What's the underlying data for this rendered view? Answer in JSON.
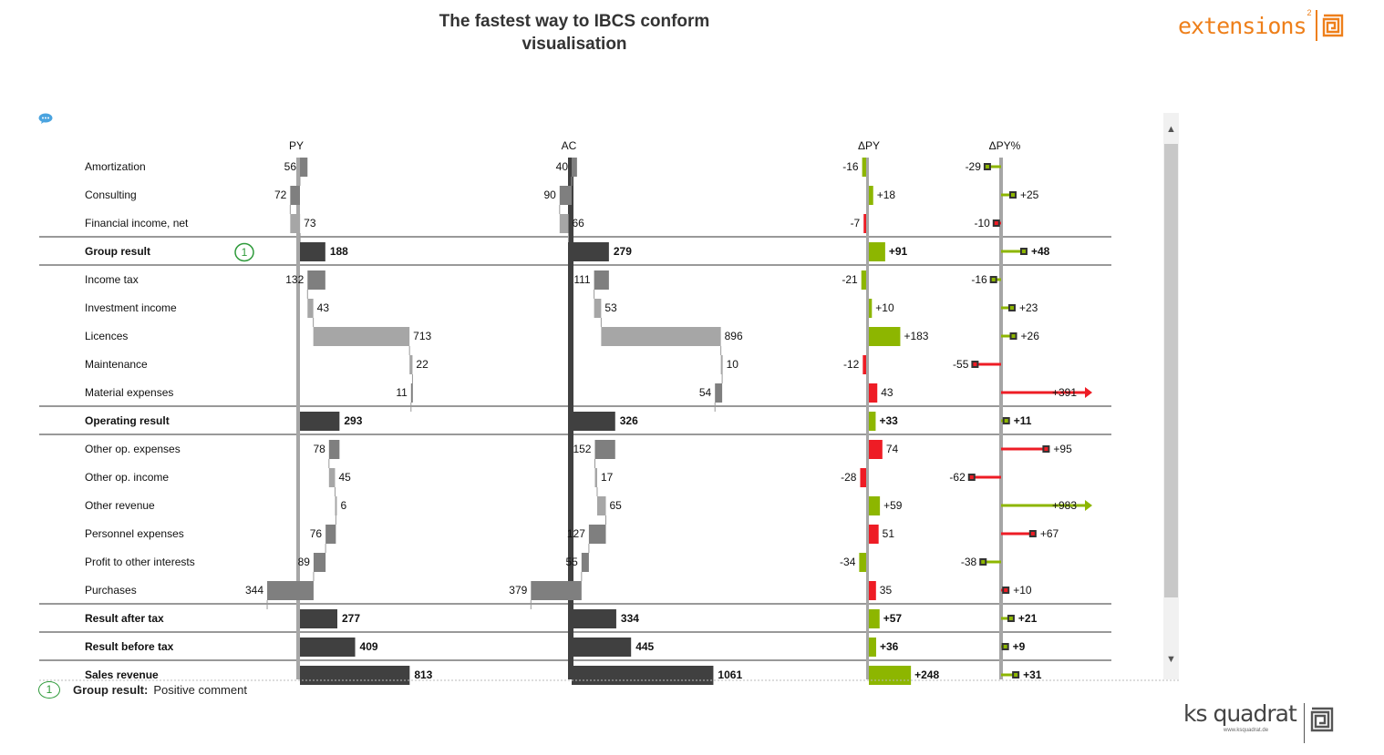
{
  "header": {
    "title_line1": "The fastest  way to IBCS conform",
    "title_line2": "visualisation",
    "brand": "extensions",
    "brand_sup": "2",
    "footer_brand": "ks quadrat",
    "footer_url": "www.ksquadrat.de"
  },
  "legend": {
    "marker": "1",
    "label": "Group result:",
    "text": "Positive comment"
  },
  "chart_data": {
    "type": "table",
    "columns": [
      "PY",
      "AC",
      "ΔPY",
      "ΔPY%"
    ],
    "colors": {
      "positive": "#8db600",
      "negative": "#ee1c25",
      "result_bar": "#404040",
      "positive_item": "#a6a6a6",
      "negative_item": "#7f7f7f",
      "axis_py": "#a6a6a6",
      "axis_ac": "#404040",
      "comment": "#2e9a3a"
    },
    "rows": [
      {
        "label": "Amortization",
        "type": "item",
        "sign": -1,
        "py": "56",
        "ac": "40",
        "dpy": "-16",
        "dpy_val": -16,
        "dpy_color": "positive",
        "dpct": "-29",
        "dpct_val": -29,
        "dpct_color": "positive",
        "waterfall": {
          "py_start": 56,
          "py_end": 0,
          "ac_start": 40,
          "ac_end": 0
        }
      },
      {
        "label": "Consulting",
        "type": "item",
        "sign": -1,
        "py": "72",
        "ac": "90",
        "dpy": "+18",
        "dpy_val": 18,
        "dpy_color": "positive",
        "dpct": "+25",
        "dpct_val": 25,
        "dpct_color": "positive",
        "waterfall": {
          "py_start": 0,
          "py_end": -72,
          "ac_start": 0,
          "ac_end": -90
        }
      },
      {
        "label": "Financial income, net",
        "type": "item",
        "sign": 1,
        "py": "73",
        "ac": "66",
        "dpy": "-7",
        "dpy_val": -7,
        "dpy_color": "negative",
        "dpct": "-10",
        "dpct_val": -10,
        "dpct_color": "negative",
        "waterfall": {
          "py_start": 115,
          "py_end": 188,
          "ac_start": 213,
          "ac_end": 279
        }
      },
      {
        "label": "Group result",
        "type": "result",
        "comment": "1",
        "py": "188",
        "ac": "279",
        "dpy": "+91",
        "dpy_val": 91,
        "dpy_color": "positive",
        "dpct": "+48",
        "dpct_val": 48,
        "dpct_color": "positive"
      },
      {
        "label": "Income tax",
        "type": "item",
        "sign": -1,
        "py": "132",
        "ac": "111",
        "dpy": "-21",
        "dpy_val": -21,
        "dpy_color": "positive",
        "dpct": "-16",
        "dpct_val": -16,
        "dpct_color": "positive"
      },
      {
        "label": "Investment income",
        "type": "item",
        "sign": 1,
        "py": "43",
        "ac": "53",
        "dpy": "+10",
        "dpy_val": 10,
        "dpy_color": "positive",
        "dpct": "+23",
        "dpct_val": 23,
        "dpct_color": "positive"
      },
      {
        "label": "Licences",
        "type": "item",
        "sign": 1,
        "py": "713",
        "ac": "896",
        "dpy": "+183",
        "dpy_val": 183,
        "dpy_color": "positive",
        "dpct": "+26",
        "dpct_val": 26,
        "dpct_color": "positive"
      },
      {
        "label": "Maintenance",
        "type": "item",
        "sign": 1,
        "py": "22",
        "ac": "10",
        "dpy": "-12",
        "dpy_val": -12,
        "dpy_color": "negative",
        "dpct": "-55",
        "dpct_val": -55,
        "dpct_color": "negative"
      },
      {
        "label": "Material expenses",
        "type": "item",
        "sign": -1,
        "py": "11",
        "ac": "54",
        "dpy": "43",
        "dpy_val": 43,
        "dpy_color": "negative",
        "dpct": "+391",
        "dpct_val": 391,
        "dpct_color": "negative",
        "dpct_overflow": true
      },
      {
        "label": "Operating result",
        "type": "result",
        "py": "293",
        "ac": "326",
        "dpy": "+33",
        "dpy_val": 33,
        "dpy_color": "positive",
        "dpct": "+11",
        "dpct_val": 11,
        "dpct_color": "positive"
      },
      {
        "label": "Other op. expenses",
        "type": "item",
        "sign": -1,
        "py": "78",
        "ac": "152",
        "dpy": "74",
        "dpy_val": 74,
        "dpy_color": "negative",
        "dpct": "+95",
        "dpct_val": 95,
        "dpct_color": "negative"
      },
      {
        "label": "Other op. income",
        "type": "item",
        "sign": 1,
        "py": "45",
        "ac": "17",
        "dpy": "-28",
        "dpy_val": -28,
        "dpy_color": "negative",
        "dpct": "-62",
        "dpct_val": -62,
        "dpct_color": "negative"
      },
      {
        "label": "Other revenue",
        "type": "item",
        "sign": 1,
        "py": "6",
        "ac": "65",
        "dpy": "+59",
        "dpy_val": 59,
        "dpy_color": "positive",
        "dpct": "+983",
        "dpct_val": 983,
        "dpct_color": "positive",
        "dpct_overflow": true
      },
      {
        "label": "Personnel expenses",
        "type": "item",
        "sign": -1,
        "py": "76",
        "ac": "127",
        "dpy": "51",
        "dpy_val": 51,
        "dpy_color": "negative",
        "dpct": "+67",
        "dpct_val": 67,
        "dpct_color": "negative"
      },
      {
        "label": "Profit to other interests",
        "type": "item",
        "sign": -1,
        "py": "89",
        "ac": "55",
        "dpy": "-34",
        "dpy_val": -34,
        "dpy_color": "positive",
        "dpct": "-38",
        "dpct_val": -38,
        "dpct_color": "positive"
      },
      {
        "label": "Purchases",
        "type": "item",
        "sign": -1,
        "py": "344",
        "ac": "379",
        "dpy": "35",
        "dpy_val": 35,
        "dpy_color": "negative",
        "dpct": "+10",
        "dpct_val": 10,
        "dpct_color": "negative"
      },
      {
        "label": "Result after tax",
        "type": "result",
        "py": "277",
        "ac": "334",
        "dpy": "+57",
        "dpy_val": 57,
        "dpy_color": "positive",
        "dpct": "+21",
        "dpct_val": 21,
        "dpct_color": "positive"
      },
      {
        "label": "Result before tax",
        "type": "result",
        "py": "409",
        "ac": "445",
        "dpy": "+36",
        "dpy_val": 36,
        "dpy_color": "positive",
        "dpct": "+9",
        "dpct_val": 9,
        "dpct_color": "positive"
      },
      {
        "label": "Sales revenue",
        "type": "result",
        "py": "813",
        "ac": "1061",
        "dpy": "+248",
        "dpy_val": 248,
        "dpy_color": "positive",
        "dpct": "+31",
        "dpct_val": 31,
        "dpct_color": "positive"
      }
    ]
  }
}
